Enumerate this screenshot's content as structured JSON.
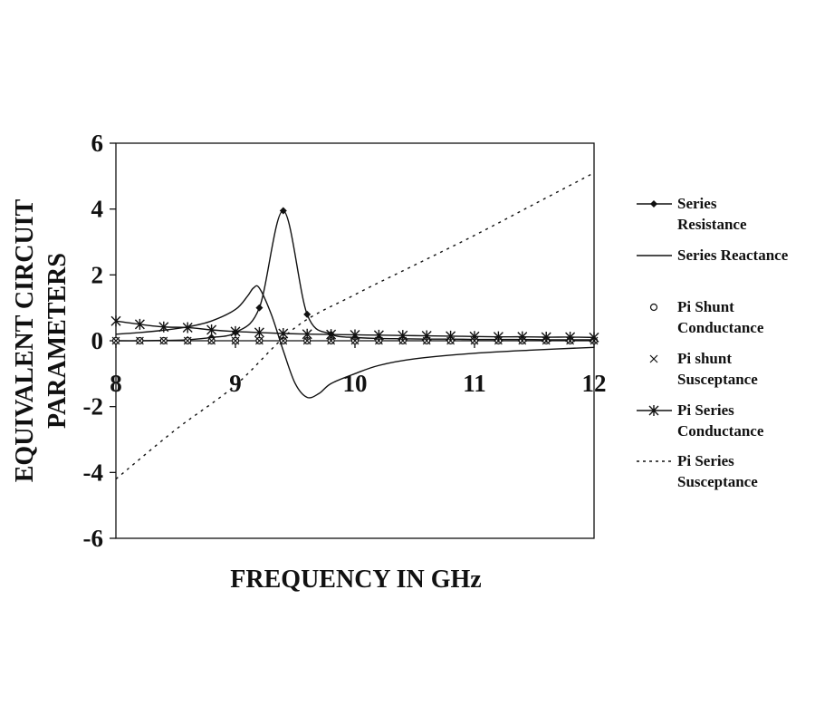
{
  "chart_data": {
    "type": "line",
    "title": "",
    "xlabel": "FREQUENCY IN GHz",
    "ylabel_lines": [
      "EQUIVALENT CIRCUIT",
      "PARAMETERS"
    ],
    "xlim": [
      8,
      12
    ],
    "ylim": [
      -6,
      6
    ],
    "xticks": [
      8,
      9,
      10,
      11,
      12
    ],
    "yticks": [
      6,
      4,
      2,
      0,
      -2,
      -4,
      -6
    ],
    "grid": false,
    "legend_position": "right",
    "color": "#111111",
    "series": [
      {
        "name": "Series Resistance",
        "name_lines": [
          "Series",
          "Resistance"
        ],
        "style": "line-diamond",
        "x": [
          8,
          8.2,
          8.4,
          8.6,
          8.8,
          9.0,
          9.2,
          9.4,
          9.6,
          9.8,
          10.0,
          10.2,
          10.4,
          10.6,
          10.8,
          11.0,
          11.2,
          11.4,
          11.6,
          11.8,
          12.0
        ],
        "y": [
          0,
          0,
          0.01,
          0.03,
          0.1,
          0.25,
          1.0,
          3.95,
          0.8,
          0.2,
          0.1,
          0.07,
          0.06,
          0.05,
          0.05,
          0.04,
          0.04,
          0.04,
          0.03,
          0.03,
          0.03
        ]
      },
      {
        "name": "Series Reactance",
        "name_lines": [
          "Series Reactance"
        ],
        "style": "line",
        "x": [
          8,
          8.2,
          8.4,
          8.6,
          8.8,
          9.0,
          9.1,
          9.15,
          9.2,
          9.3,
          9.4,
          9.5,
          9.6,
          9.7,
          9.8,
          10.0,
          10.2,
          10.5,
          11.0,
          11.5,
          12.0
        ],
        "y": [
          0.2,
          0.25,
          0.32,
          0.42,
          0.6,
          0.95,
          1.35,
          1.6,
          1.6,
          0.8,
          -0.3,
          -1.3,
          -1.72,
          -1.6,
          -1.3,
          -1.0,
          -0.75,
          -0.55,
          -0.38,
          -0.28,
          -0.2
        ]
      },
      {
        "name": "Pi Shunt Conductance",
        "name_lines": [
          "Pi Shunt",
          "Conductance"
        ],
        "style": "circle",
        "x": [
          8,
          8.2,
          8.4,
          8.6,
          8.8,
          9.0,
          9.2,
          9.4,
          9.6,
          9.8,
          10.0,
          10.2,
          10.4,
          10.6,
          10.8,
          11.0,
          11.2,
          11.4,
          11.6,
          11.8,
          12.0
        ],
        "y": [
          0,
          0,
          0,
          0,
          0,
          0,
          0,
          0,
          0,
          0,
          0,
          0,
          0,
          0,
          0,
          0,
          0,
          0,
          0,
          0,
          0
        ]
      },
      {
        "name": "Pi shunt Susceptance",
        "name_lines": [
          "Pi shunt",
          "Susceptance"
        ],
        "style": "x",
        "x": [
          8,
          8.2,
          8.4,
          8.6,
          8.8,
          9.0,
          9.2,
          9.4,
          9.6,
          9.8,
          10.0,
          10.2,
          10.4,
          10.6,
          10.8,
          11.0,
          11.2,
          11.4,
          11.6,
          11.8,
          12.0
        ],
        "y": [
          0,
          0,
          0,
          0,
          0,
          0,
          0,
          0,
          0,
          0,
          0,
          0,
          0,
          0,
          0,
          0,
          0,
          0,
          0,
          0,
          0
        ]
      },
      {
        "name": "Pi Series Conductance",
        "name_lines": [
          "Pi Series",
          "Conductance"
        ],
        "style": "line-star",
        "x": [
          8,
          8.2,
          8.4,
          8.6,
          8.8,
          9.0,
          9.2,
          9.4,
          9.6,
          9.8,
          10.0,
          10.2,
          10.4,
          10.6,
          10.8,
          11.0,
          11.2,
          11.4,
          11.6,
          11.8,
          12.0
        ],
        "y": [
          0.6,
          0.5,
          0.42,
          0.4,
          0.33,
          0.28,
          0.25,
          0.22,
          0.2,
          0.19,
          0.18,
          0.17,
          0.16,
          0.15,
          0.14,
          0.13,
          0.12,
          0.12,
          0.11,
          0.11,
          0.1
        ]
      },
      {
        "name": "Pi Series Susceptance",
        "name_lines": [
          "Pi Series",
          "Susceptance"
        ],
        "style": "dotted",
        "x": [
          8,
          8.5,
          9.0,
          9.5,
          10.0,
          10.5,
          11.0,
          11.5,
          12.0
        ],
        "y": [
          -4.2,
          -2.7,
          -1.35,
          0.4,
          1.4,
          2.3,
          3.2,
          4.15,
          5.1
        ]
      }
    ]
  }
}
